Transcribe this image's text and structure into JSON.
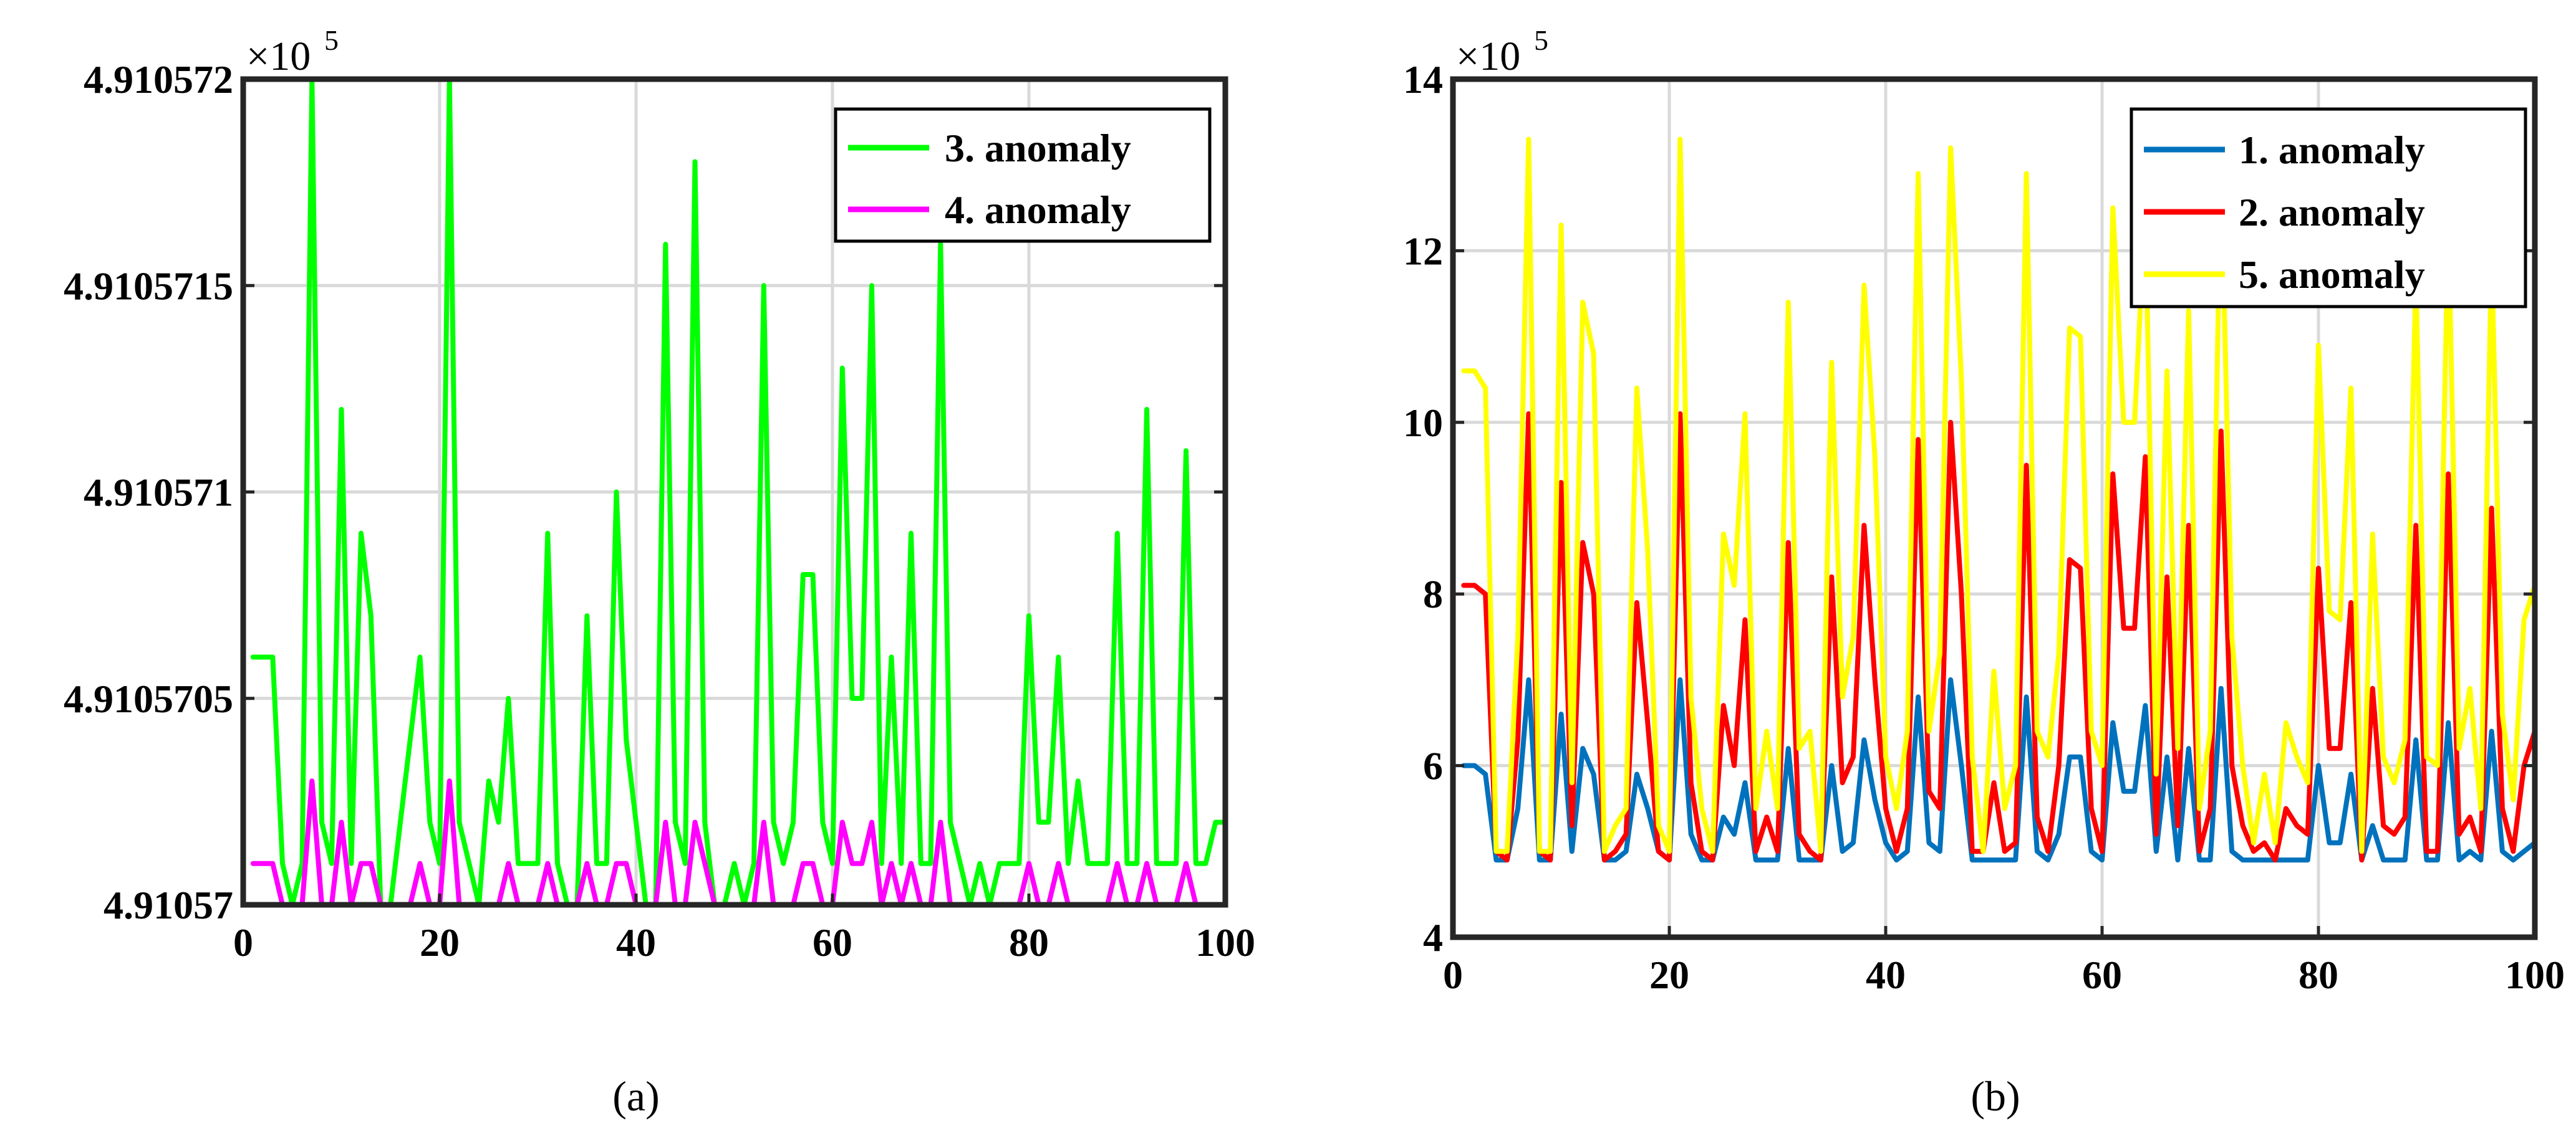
{
  "chart_data": [
    {
      "type": "line",
      "caption": "(a)",
      "exponent_label": "×10",
      "exponent_power": "5",
      "xlim": [
        0,
        100
      ],
      "ylim": [
        4.91057,
        4.910572
      ],
      "x_ticks": [
        0,
        20,
        40,
        60,
        80,
        100
      ],
      "x_tick_labels": [
        "0",
        "20",
        "40",
        "60",
        "80",
        "100"
      ],
      "y_ticks": [
        4.91057,
        4.9105705,
        4.910571,
        4.9105715,
        4.910572
      ],
      "y_tick_labels": [
        "4.91057",
        "4.9105705",
        "4.910571",
        "4.9105715",
        "4.910572"
      ],
      "grid": true,
      "legend_position": "top-right",
      "series": [
        {
          "name": "3. anomaly",
          "color": "#00ff00",
          "values": [
            4.9105706,
            4.9105706,
            4.9105706,
            4.9105701,
            4.91057,
            4.9105701,
            4.910572,
            4.9105702,
            4.9105701,
            4.9105712,
            4.9105701,
            4.9105709,
            4.9105707,
            4.91057,
            4.91057,
            4.9105702,
            4.9105704,
            4.9105706,
            4.9105702,
            4.9105701,
            4.910572,
            4.9105702,
            4.9105701,
            4.91057,
            4.9105703,
            4.9105702,
            4.9105705,
            4.9105701,
            4.9105701,
            4.9105701,
            4.9105709,
            4.9105701,
            4.91057,
            4.91057,
            4.9105707,
            4.9105701,
            4.9105701,
            4.910571,
            4.9105704,
            4.9105702,
            4.91057,
            4.91057,
            4.9105716,
            4.9105702,
            4.9105701,
            4.9105718,
            4.9105702,
            4.91057,
            4.91057,
            4.9105701,
            4.91057,
            4.9105701,
            4.9105715,
            4.9105702,
            4.9105701,
            4.9105702,
            4.9105708,
            4.9105708,
            4.9105702,
            4.9105701,
            4.9105713,
            4.9105705,
            4.9105705,
            4.9105715,
            4.9105701,
            4.9105706,
            4.9105701,
            4.9105709,
            4.9105701,
            4.9105701,
            4.9105716,
            4.9105702,
            4.9105701,
            4.91057,
            4.9105701,
            4.91057,
            4.9105701,
            4.9105701,
            4.9105701,
            4.9105707,
            4.9105702,
            4.9105702,
            4.9105706,
            4.9105701,
            4.9105703,
            4.9105701,
            4.9105701,
            4.9105701,
            4.9105709,
            4.9105701,
            4.9105701,
            4.9105712,
            4.9105701,
            4.9105701,
            4.9105701,
            4.9105711,
            4.9105701,
            4.9105701,
            4.9105702,
            4.9105702
          ]
        },
        {
          "name": "4. anomaly",
          "color": "#ff00ff",
          "values": [
            4.9105701,
            4.9105701,
            4.9105701,
            4.91057,
            4.91057,
            4.91057,
            4.9105703,
            4.91057,
            4.91057,
            4.9105702,
            4.91057,
            4.9105701,
            4.9105701,
            4.91057,
            4.91057,
            4.91057,
            4.91057,
            4.9105701,
            4.91057,
            4.91057,
            4.9105703,
            4.91057,
            4.91057,
            4.91057,
            4.91057,
            4.91057,
            4.9105701,
            4.91057,
            4.91057,
            4.91057,
            4.9105701,
            4.91057,
            4.91057,
            4.91057,
            4.9105701,
            4.91057,
            4.91057,
            4.9105701,
            4.9105701,
            4.91057,
            4.91057,
            4.91057,
            4.9105702,
            4.91057,
            4.91057,
            4.9105702,
            4.9105701,
            4.91057,
            4.91057,
            4.91057,
            4.91057,
            4.91057,
            4.9105702,
            4.91057,
            4.91057,
            4.91057,
            4.9105701,
            4.9105701,
            4.91057,
            4.91057,
            4.9105702,
            4.9105701,
            4.9105701,
            4.9105702,
            4.91057,
            4.9105701,
            4.91057,
            4.9105701,
            4.91057,
            4.91057,
            4.9105702,
            4.91057,
            4.91057,
            4.91057,
            4.91057,
            4.91057,
            4.91057,
            4.91057,
            4.91057,
            4.9105701,
            4.91057,
            4.91057,
            4.9105701,
            4.91057,
            4.91057,
            4.91057,
            4.91057,
            4.91057,
            4.9105701,
            4.91057,
            4.91057,
            4.9105701,
            4.91057,
            4.91057,
            4.91057,
            4.9105701,
            4.91057,
            4.91057,
            4.91057,
            4.91057
          ]
        }
      ]
    },
    {
      "type": "line",
      "caption": "(b)",
      "exponent_label": "×10",
      "exponent_power": "5",
      "xlim": [
        0,
        100
      ],
      "ylim": [
        4,
        14
      ],
      "x_ticks": [
        0,
        20,
        40,
        60,
        80,
        100
      ],
      "x_tick_labels": [
        "0",
        "20",
        "40",
        "60",
        "80",
        "100"
      ],
      "y_ticks": [
        4,
        6,
        8,
        10,
        12,
        14
      ],
      "y_tick_labels": [
        "4",
        "6",
        "8",
        "10",
        "12",
        "14"
      ],
      "grid": true,
      "legend_position": "top-right",
      "series": [
        {
          "name": "1. anomaly",
          "color": "#0072bd",
          "values": [
            6.0,
            6.0,
            5.9,
            4.9,
            4.9,
            5.5,
            7.0,
            4.9,
            4.9,
            6.6,
            5.0,
            6.2,
            5.9,
            4.9,
            4.9,
            5.0,
            5.9,
            5.5,
            5.0,
            4.9,
            7.0,
            5.2,
            4.9,
            4.9,
            5.4,
            5.2,
            5.8,
            4.9,
            4.9,
            4.9,
            6.2,
            4.9,
            4.9,
            4.9,
            6.0,
            5.0,
            5.1,
            6.3,
            5.6,
            5.1,
            4.9,
            5.0,
            6.8,
            5.1,
            5.0,
            7.0,
            6.0,
            4.9,
            4.9,
            4.9,
            4.9,
            4.9,
            6.8,
            5.0,
            4.9,
            5.2,
            6.1,
            6.1,
            5.0,
            4.9,
            6.5,
            5.7,
            5.7,
            6.7,
            5.0,
            6.1,
            4.9,
            6.2,
            4.9,
            4.9,
            6.9,
            5.0,
            4.9,
            4.9,
            4.9,
            4.9,
            4.9,
            4.9,
            4.9,
            6.0,
            5.1,
            5.1,
            5.9,
            4.9,
            5.3,
            4.9,
            4.9,
            4.9,
            6.3,
            4.9,
            4.9,
            6.5,
            4.9,
            5.0,
            4.9,
            6.4,
            5.0,
            4.9,
            5.0,
            5.1
          ]
        },
        {
          "name": "2. anomaly",
          "color": "#ff0000",
          "values": [
            8.1,
            8.1,
            8.0,
            5.0,
            4.9,
            6.3,
            10.1,
            5.0,
            4.9,
            9.3,
            5.3,
            8.6,
            8.0,
            4.9,
            5.0,
            5.2,
            7.9,
            6.5,
            5.0,
            4.9,
            10.1,
            5.8,
            5.0,
            4.9,
            6.7,
            6.0,
            7.7,
            5.0,
            5.4,
            5.0,
            8.6,
            5.2,
            5.0,
            4.9,
            8.2,
            5.8,
            6.1,
            8.8,
            7.0,
            5.5,
            5.0,
            5.5,
            9.8,
            5.7,
            5.5,
            10.0,
            8.0,
            5.0,
            5.0,
            5.8,
            5.0,
            5.1,
            9.5,
            5.4,
            5.0,
            6.0,
            8.4,
            8.3,
            5.5,
            5.0,
            9.4,
            7.6,
            7.6,
            9.6,
            5.2,
            8.2,
            5.3,
            8.8,
            5.0,
            5.5,
            9.9,
            6.0,
            5.3,
            5.0,
            5.1,
            4.9,
            5.5,
            5.3,
            5.2,
            8.3,
            6.2,
            6.2,
            7.9,
            4.9,
            6.9,
            5.3,
            5.2,
            5.4,
            8.8,
            5.0,
            5.0,
            9.4,
            5.2,
            5.4,
            5.0,
            9.0,
            5.5,
            5.0,
            6.0,
            6.4
          ]
        },
        {
          "name": "5. anomaly",
          "color": "#ffff00",
          "values": [
            10.6,
            10.6,
            10.4,
            5.0,
            5.0,
            7.5,
            13.3,
            5.0,
            5.0,
            12.3,
            5.8,
            11.4,
            10.8,
            5.0,
            5.3,
            5.5,
            10.4,
            8.5,
            5.3,
            5.0,
            13.3,
            6.8,
            5.5,
            5.0,
            8.7,
            8.1,
            10.1,
            5.5,
            6.4,
            5.5,
            11.4,
            6.2,
            6.4,
            5.0,
            10.7,
            6.8,
            7.5,
            11.6,
            9.6,
            6.1,
            5.5,
            6.4,
            12.9,
            6.4,
            7.3,
            13.2,
            10.5,
            6.1,
            5.0,
            7.1,
            5.5,
            6.0,
            12.9,
            6.4,
            6.1,
            7.3,
            11.1,
            11.0,
            6.4,
            6.0,
            12.5,
            10.0,
            10.0,
            12.5,
            5.9,
            10.6,
            6.2,
            11.3,
            5.5,
            6.4,
            13.0,
            7.5,
            6.0,
            5.1,
            5.9,
            5.1,
            6.5,
            6.1,
            5.8,
            10.9,
            7.8,
            7.7,
            10.4,
            5.0,
            8.7,
            6.1,
            5.8,
            6.3,
            11.7,
            6.1,
            6.0,
            12.4,
            6.2,
            6.9,
            5.5,
            12.0,
            6.6,
            5.6,
            7.7,
            8.1
          ]
        }
      ]
    }
  ]
}
